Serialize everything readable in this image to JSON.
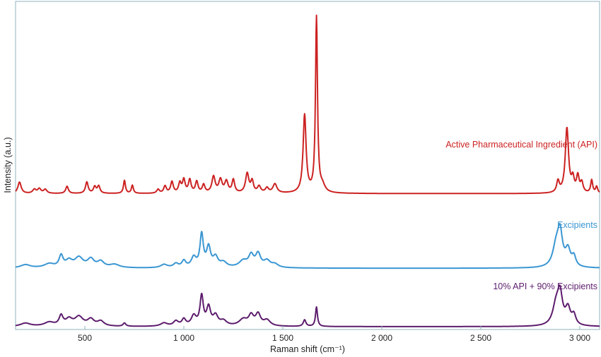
{
  "chart_data": {
    "type": "line",
    "xlabel": "Raman shift (cm⁻¹)",
    "ylabel": "Intensity (a.u.)",
    "xlim": [
      150,
      3100
    ],
    "ylim": [
      0,
      1
    ],
    "x_ticks": [
      500,
      1000,
      1500,
      2000,
      2500,
      3000
    ],
    "x_tick_labels": [
      "500",
      "1 000",
      "1 500",
      "2 000",
      "2 500",
      "3 000"
    ],
    "grid": false,
    "series": [
      {
        "name": "Active Pharmaceutical Ingredient (API)",
        "color": "#cc2222",
        "baseline": 0.41,
        "peaks": [
          {
            "x": 170,
            "h": 0.035,
            "w": 10
          },
          {
            "x": 245,
            "h": 0.012,
            "w": 10
          },
          {
            "x": 270,
            "h": 0.014,
            "w": 10
          },
          {
            "x": 300,
            "h": 0.012,
            "w": 10
          },
          {
            "x": 410,
            "h": 0.022,
            "w": 8
          },
          {
            "x": 510,
            "h": 0.035,
            "w": 8
          },
          {
            "x": 550,
            "h": 0.02,
            "w": 8
          },
          {
            "x": 570,
            "h": 0.022,
            "w": 8
          },
          {
            "x": 700,
            "h": 0.04,
            "w": 6
          },
          {
            "x": 740,
            "h": 0.025,
            "w": 6
          },
          {
            "x": 870,
            "h": 0.012,
            "w": 8
          },
          {
            "x": 905,
            "h": 0.022,
            "w": 8
          },
          {
            "x": 940,
            "h": 0.035,
            "w": 8
          },
          {
            "x": 980,
            "h": 0.03,
            "w": 8
          },
          {
            "x": 1000,
            "h": 0.04,
            "w": 8
          },
          {
            "x": 1030,
            "h": 0.04,
            "w": 8
          },
          {
            "x": 1065,
            "h": 0.035,
            "w": 8
          },
          {
            "x": 1100,
            "h": 0.025,
            "w": 8
          },
          {
            "x": 1150,
            "h": 0.05,
            "w": 10
          },
          {
            "x": 1185,
            "h": 0.04,
            "w": 10
          },
          {
            "x": 1215,
            "h": 0.035,
            "w": 10
          },
          {
            "x": 1250,
            "h": 0.04,
            "w": 8
          },
          {
            "x": 1320,
            "h": 0.06,
            "w": 10
          },
          {
            "x": 1345,
            "h": 0.035,
            "w": 8
          },
          {
            "x": 1380,
            "h": 0.02,
            "w": 10
          },
          {
            "x": 1420,
            "h": 0.015,
            "w": 10
          },
          {
            "x": 1460,
            "h": 0.028,
            "w": 12
          },
          {
            "x": 1610,
            "h": 0.24,
            "w": 9
          },
          {
            "x": 1670,
            "h": 0.54,
            "w": 6
          },
          {
            "x": 1700,
            "h": 0.02,
            "w": 15
          },
          {
            "x": 2890,
            "h": 0.035,
            "w": 8
          },
          {
            "x": 2935,
            "h": 0.2,
            "w": 10
          },
          {
            "x": 2965,
            "h": 0.04,
            "w": 8
          },
          {
            "x": 2990,
            "h": 0.05,
            "w": 8
          },
          {
            "x": 3010,
            "h": 0.03,
            "w": 8
          },
          {
            "x": 3060,
            "h": 0.04,
            "w": 6
          },
          {
            "x": 3085,
            "h": 0.02,
            "w": 6
          }
        ]
      },
      {
        "name": "Excipients",
        "color": "#3a96d2",
        "baseline": 0.18,
        "peaks": [
          {
            "x": 200,
            "h": 0.01,
            "w": 30
          },
          {
            "x": 320,
            "h": 0.012,
            "w": 30
          },
          {
            "x": 380,
            "h": 0.035,
            "w": 12
          },
          {
            "x": 420,
            "h": 0.02,
            "w": 20
          },
          {
            "x": 470,
            "h": 0.03,
            "w": 25
          },
          {
            "x": 530,
            "h": 0.025,
            "w": 20
          },
          {
            "x": 580,
            "h": 0.018,
            "w": 20
          },
          {
            "x": 650,
            "h": 0.01,
            "w": 30
          },
          {
            "x": 900,
            "h": 0.01,
            "w": 20
          },
          {
            "x": 960,
            "h": 0.012,
            "w": 15
          },
          {
            "x": 1000,
            "h": 0.02,
            "w": 12
          },
          {
            "x": 1050,
            "h": 0.03,
            "w": 15
          },
          {
            "x": 1090,
            "h": 0.1,
            "w": 10
          },
          {
            "x": 1125,
            "h": 0.06,
            "w": 12
          },
          {
            "x": 1160,
            "h": 0.03,
            "w": 15
          },
          {
            "x": 1200,
            "h": 0.015,
            "w": 20
          },
          {
            "x": 1300,
            "h": 0.02,
            "w": 25
          },
          {
            "x": 1340,
            "h": 0.035,
            "w": 15
          },
          {
            "x": 1375,
            "h": 0.04,
            "w": 15
          },
          {
            "x": 1420,
            "h": 0.02,
            "w": 20
          },
          {
            "x": 1460,
            "h": 0.01,
            "w": 20
          },
          {
            "x": 2880,
            "h": 0.06,
            "w": 20
          },
          {
            "x": 2900,
            "h": 0.1,
            "w": 15
          },
          {
            "x": 2940,
            "h": 0.05,
            "w": 15
          },
          {
            "x": 2970,
            "h": 0.03,
            "w": 12
          }
        ]
      },
      {
        "name": "10% API + 90% Excipients",
        "color": "#5c1c6c",
        "baseline": 0.0,
        "peaks": [
          {
            "x": 200,
            "h": 0.01,
            "w": 30
          },
          {
            "x": 320,
            "h": 0.012,
            "w": 30
          },
          {
            "x": 380,
            "h": 0.03,
            "w": 12
          },
          {
            "x": 420,
            "h": 0.02,
            "w": 20
          },
          {
            "x": 470,
            "h": 0.028,
            "w": 25
          },
          {
            "x": 530,
            "h": 0.02,
            "w": 20
          },
          {
            "x": 580,
            "h": 0.015,
            "w": 20
          },
          {
            "x": 700,
            "h": 0.01,
            "w": 8
          },
          {
            "x": 900,
            "h": 0.01,
            "w": 20
          },
          {
            "x": 960,
            "h": 0.015,
            "w": 15
          },
          {
            "x": 1000,
            "h": 0.02,
            "w": 12
          },
          {
            "x": 1050,
            "h": 0.03,
            "w": 15
          },
          {
            "x": 1090,
            "h": 0.09,
            "w": 10
          },
          {
            "x": 1125,
            "h": 0.055,
            "w": 12
          },
          {
            "x": 1160,
            "h": 0.03,
            "w": 15
          },
          {
            "x": 1200,
            "h": 0.015,
            "w": 20
          },
          {
            "x": 1300,
            "h": 0.02,
            "w": 25
          },
          {
            "x": 1340,
            "h": 0.03,
            "w": 15
          },
          {
            "x": 1375,
            "h": 0.035,
            "w": 15
          },
          {
            "x": 1420,
            "h": 0.018,
            "w": 20
          },
          {
            "x": 1610,
            "h": 0.02,
            "w": 8
          },
          {
            "x": 1670,
            "h": 0.06,
            "w": 6
          },
          {
            "x": 2880,
            "h": 0.06,
            "w": 20
          },
          {
            "x": 2900,
            "h": 0.09,
            "w": 15
          },
          {
            "x": 2940,
            "h": 0.05,
            "w": 15
          },
          {
            "x": 2970,
            "h": 0.03,
            "w": 12
          }
        ]
      }
    ]
  }
}
